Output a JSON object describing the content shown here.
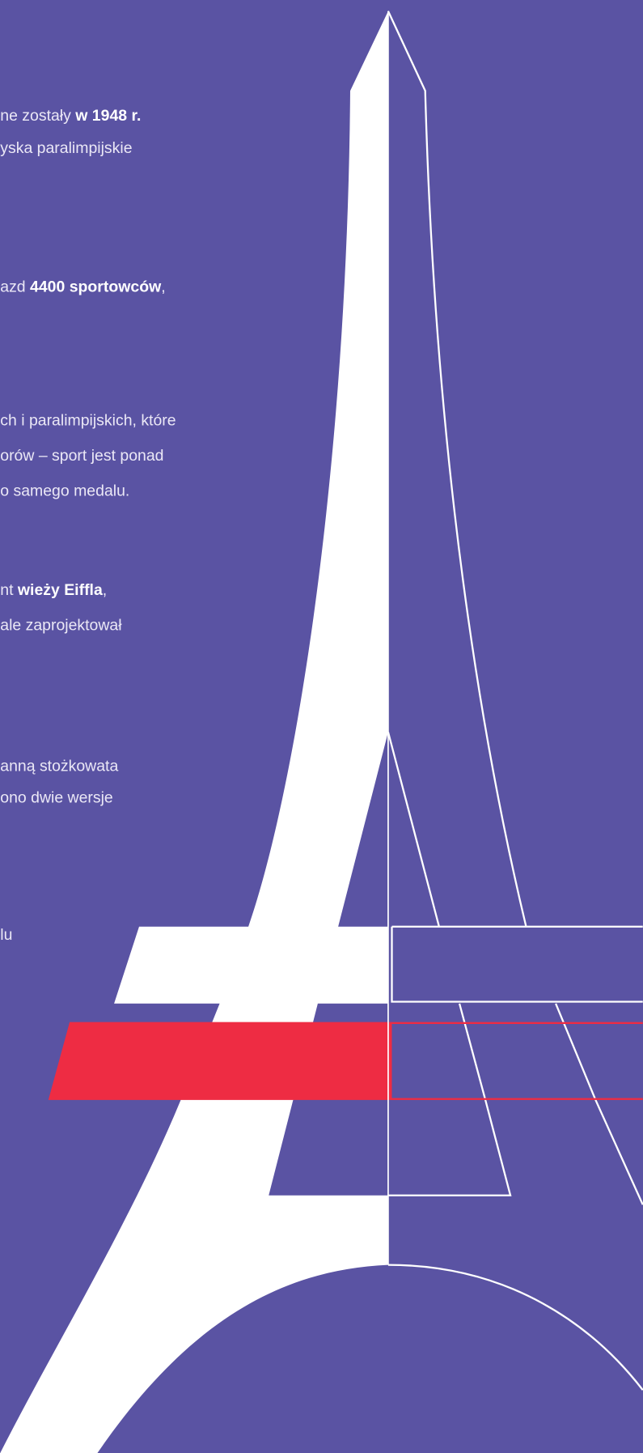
{
  "lines": [
    [
      {
        "text": "ne zostały "
      },
      {
        "text": "w 1948 r.",
        "bold": true
      }
    ],
    [
      {
        "text": "yska paralimpijskie"
      }
    ],
    [
      {
        "text": "azd "
      },
      {
        "text": "4400 sportowców",
        "bold": true
      },
      {
        "text": ","
      }
    ],
    [
      {
        "text": "ch i paralimpijskich, które"
      }
    ],
    [
      {
        "text": "orów – sport jest ponad"
      }
    ],
    [
      {
        "text": "o samego medalu."
      }
    ],
    [
      {
        "text": "nt "
      },
      {
        "text": "wieży Eiffla",
        "bold": true
      },
      {
        "text": ","
      }
    ],
    [
      {
        "text": "ale zaprojektował"
      }
    ],
    [
      {
        "text": "anną stożkowata"
      }
    ],
    [
      {
        "text": "ono dwie wersje"
      }
    ],
    [
      {
        "text": "lu"
      }
    ]
  ]
}
